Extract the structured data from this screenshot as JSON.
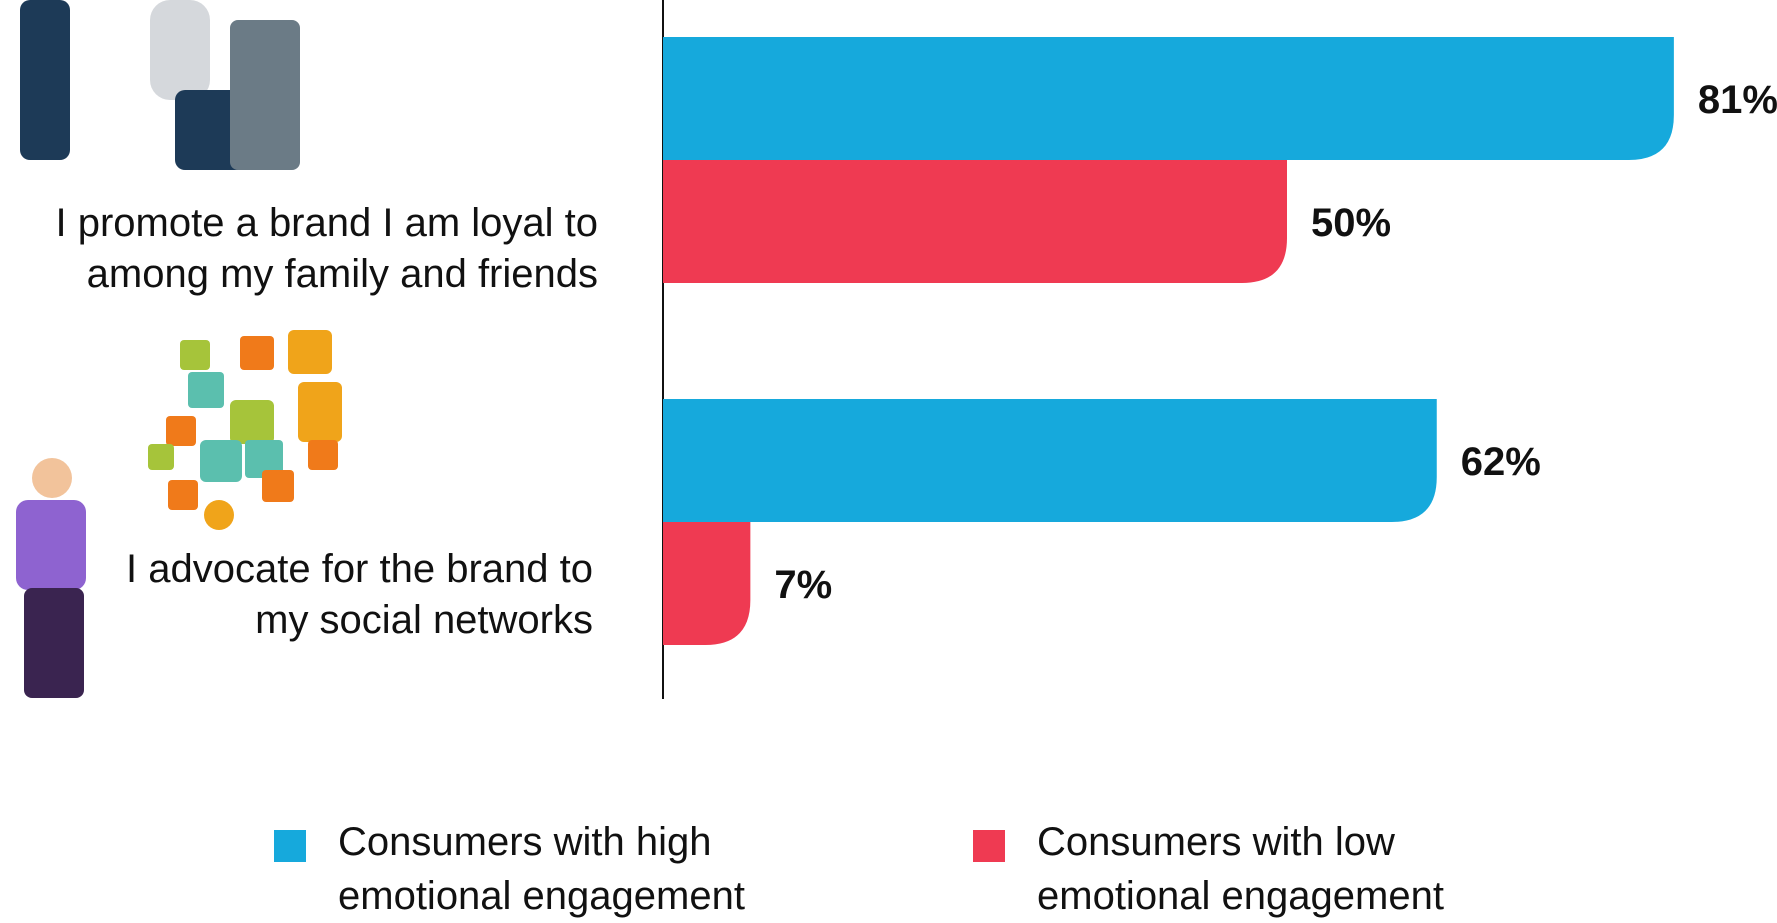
{
  "chart_data": {
    "type": "hbar",
    "categories": [
      "I promote a brand I am loyal to among my family and friends",
      "I advocate for the brand to my social networks"
    ],
    "series": [
      {
        "name": "Consumers with high emotional engagement",
        "color": "#16a9dc",
        "values": [
          81,
          62
        ],
        "value_labels": [
          "81%",
          "62%"
        ]
      },
      {
        "name": "Consumers with low emotional engagement",
        "color": "#ef3a52",
        "values": [
          50,
          7
        ],
        "value_labels": [
          "50%",
          "7%"
        ]
      }
    ],
    "xlim": [
      0,
      100
    ]
  }
}
